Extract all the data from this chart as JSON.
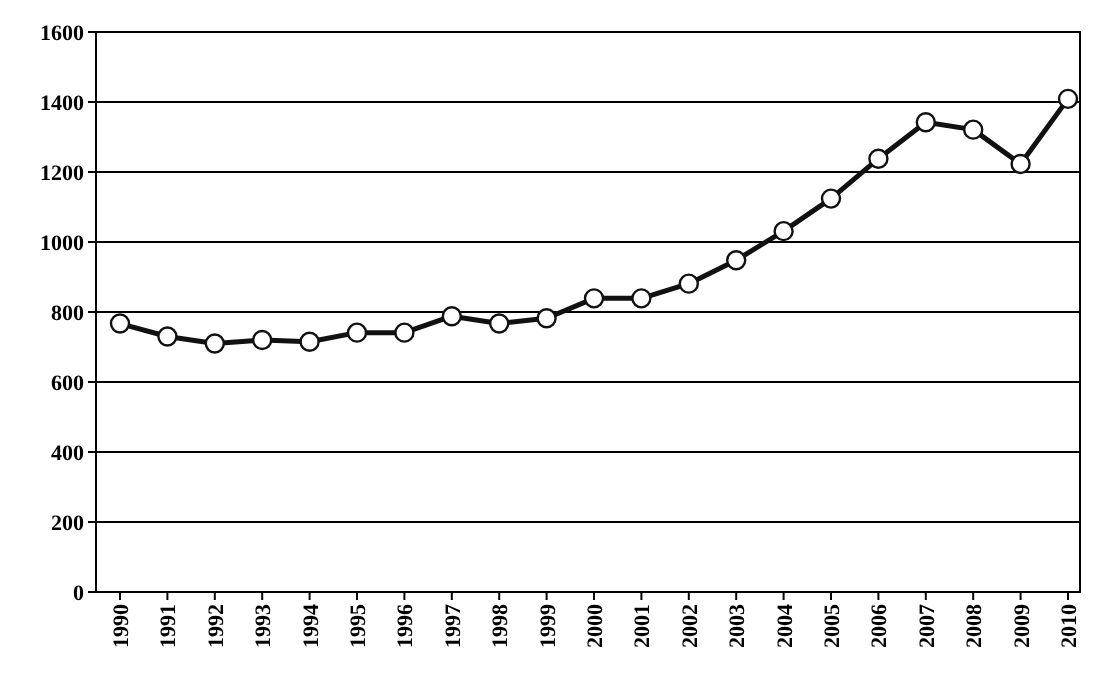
{
  "chart_data": {
    "type": "line",
    "categories": [
      "1990",
      "1991",
      "1992",
      "1993",
      "1994",
      "1995",
      "1996",
      "1997",
      "1998",
      "1999",
      "2000",
      "2001",
      "2002",
      "2003",
      "2004",
      "2005",
      "2006",
      "2007",
      "2008",
      "2009",
      "2010"
    ],
    "series": [
      {
        "color": "#111111",
        "values": [
          767,
          730,
          710,
          720,
          715,
          741,
          741,
          788,
          767,
          782,
          839,
          839,
          881,
          948,
          1031,
          1124,
          1238,
          1342,
          1321,
          1223,
          1409
        ]
      }
    ],
    "ylim": [
      0,
      1600
    ],
    "yticks": [
      0,
      200,
      400,
      600,
      800,
      1000,
      1200,
      1400,
      1600
    ],
    "grid": "y",
    "marker": "circle",
    "line_style": "solid"
  }
}
